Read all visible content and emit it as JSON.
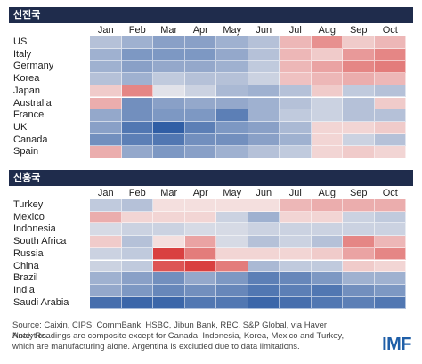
{
  "colors": {
    "header_bg": "#1f2c4c",
    "scale_min_blue": "#1a4d9c",
    "scale_mid": "#f7f3f2",
    "scale_max_red": "#d62c2c",
    "logo": "#1f5fa8"
  },
  "source_note": "Source: Caixin, CIPS, CommBank, HSBC, Jibun Bank, RBC, S&P Global, via Haver Analytics.",
  "note_text": "Note: Readings are composite except for Canada, Indonesia, Korea, Mexico and Turkey, which are manufacturing alone. Argentina is excluded due to data limitations.",
  "logo_text": "IMF",
  "chart_data": [
    {
      "type": "heatmap",
      "title": "선진국",
      "columns": [
        "Jan",
        "Feb",
        "Mar",
        "Apr",
        "May",
        "Jun",
        "Jul",
        "Aug",
        "Sep",
        "Oct"
      ],
      "rows": [
        "US",
        "Italy",
        "Germany",
        "Korea",
        "Japan",
        "Australia",
        "France",
        "UK",
        "Canada",
        "Spain"
      ],
      "values": [
        [
          -0.3,
          -0.4,
          -0.5,
          -0.5,
          -0.4,
          -0.3,
          0.3,
          0.5,
          0.2,
          0.3
        ],
        [
          -0.4,
          -0.55,
          -0.55,
          -0.55,
          -0.45,
          -0.3,
          0.3,
          0.2,
          0.45,
          0.55
        ],
        [
          -0.4,
          -0.5,
          -0.45,
          -0.45,
          -0.4,
          -0.25,
          0.3,
          0.4,
          0.55,
          0.6
        ],
        [
          -0.3,
          -0.4,
          -0.25,
          -0.3,
          -0.3,
          -0.2,
          0.25,
          0.3,
          0.35,
          0.3
        ],
        [
          0.2,
          0.55,
          -0.1,
          -0.2,
          -0.35,
          -0.4,
          -0.3,
          0.2,
          -0.25,
          -0.3
        ],
        [
          0.35,
          -0.6,
          -0.5,
          -0.45,
          -0.45,
          -0.4,
          -0.3,
          -0.2,
          -0.3,
          0.2
        ],
        [
          -0.45,
          -0.6,
          -0.55,
          -0.55,
          -0.7,
          -0.4,
          -0.25,
          -0.2,
          -0.3,
          -0.3
        ],
        [
          -0.5,
          -0.75,
          -0.9,
          -0.7,
          -0.55,
          -0.5,
          -0.35,
          0.15,
          0.15,
          0.2
        ],
        [
          -0.6,
          -0.7,
          -0.75,
          -0.6,
          -0.6,
          -0.5,
          -0.4,
          0.15,
          -0.2,
          -0.3
        ],
        [
          0.35,
          -0.45,
          -0.55,
          -0.5,
          -0.4,
          -0.3,
          -0.25,
          0.15,
          0.2,
          0.15
        ]
      ]
    },
    {
      "type": "heatmap",
      "title": "신흥국",
      "columns": [
        "Jan",
        "Feb",
        "Mar",
        "Apr",
        "May",
        "Jun",
        "Jul",
        "Aug",
        "Sep",
        "Oct"
      ],
      "rows": [
        "Turkey",
        "Mexico",
        "Indonesia",
        "South Africa",
        "Russia",
        "China",
        "Brazil",
        "India",
        "Saudi Arabia"
      ],
      "values": [
        [
          -0.25,
          -0.3,
          0.1,
          0.1,
          0.1,
          0.1,
          0.3,
          0.35,
          0.35,
          0.35
        ],
        [
          0.35,
          0.15,
          0.15,
          0.15,
          -0.2,
          -0.4,
          0.15,
          0.15,
          -0.2,
          -0.25
        ],
        [
          -0.15,
          -0.2,
          -0.2,
          -0.15,
          -0.15,
          -0.2,
          -0.2,
          -0.2,
          -0.2,
          -0.2
        ],
        [
          0.2,
          -0.3,
          0.1,
          0.4,
          -0.15,
          -0.3,
          -0.2,
          -0.3,
          0.55,
          0.3
        ],
        [
          -0.2,
          -0.25,
          0.9,
          0.6,
          0.15,
          0.15,
          0.15,
          0.2,
          0.4,
          0.55
        ],
        [
          -0.2,
          -0.25,
          0.8,
          0.9,
          0.6,
          -0.35,
          -0.25,
          -0.25,
          0.2,
          0.15
        ],
        [
          -0.4,
          -0.5,
          -0.6,
          -0.45,
          -0.55,
          -0.7,
          -0.65,
          -0.55,
          -0.4,
          -0.4
        ],
        [
          -0.45,
          -0.55,
          -0.65,
          -0.6,
          -0.65,
          -0.75,
          -0.7,
          -0.75,
          -0.6,
          -0.55
        ],
        [
          -0.8,
          -0.85,
          -0.85,
          -0.75,
          -0.75,
          -0.85,
          -0.8,
          -0.75,
          -0.7,
          -0.75
        ]
      ]
    }
  ]
}
